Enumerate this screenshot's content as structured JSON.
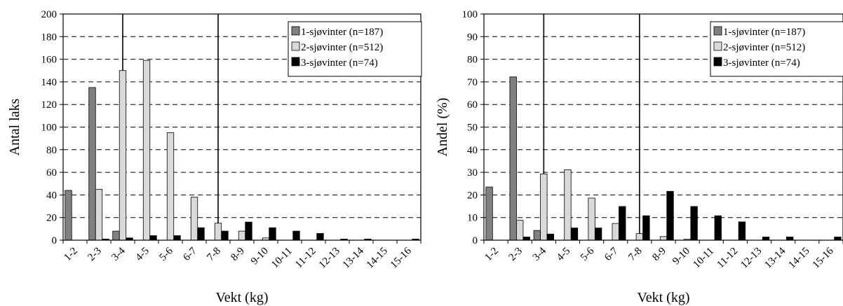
{
  "colors": {
    "series": [
      "#808080",
      "#d9d9d9",
      "#000000"
    ]
  },
  "chart_data": [
    {
      "type": "bar",
      "xlabel": "Vekt (kg)",
      "ylabel": "Antal laks",
      "ylim": [
        0,
        200
      ],
      "yticks": [
        0,
        20,
        40,
        60,
        80,
        100,
        120,
        140,
        160,
        180,
        200
      ],
      "grid": "horizontal dashed",
      "legend_position": "top-right",
      "categories": [
        "1-2",
        "2-3",
        "3-4",
        "4-5",
        "5-6",
        "6-7",
        "7-8",
        "8-9",
        "9-10",
        "10-11",
        "11-12",
        "12-13",
        "13-14",
        "14-15",
        "15-16"
      ],
      "vertical_lines_between": [
        2.5,
        6.5
      ],
      "series": [
        {
          "name": "1-sjøvinter (n=187)",
          "values": [
            44,
            135,
            8,
            0,
            0,
            0,
            0,
            0,
            0,
            0,
            0,
            0,
            0,
            0,
            0
          ]
        },
        {
          "name": "2-sjøvinter (n=512)",
          "values": [
            0,
            45,
            150,
            159,
            95,
            38,
            15,
            8,
            2,
            0,
            0,
            0,
            0,
            0,
            0
          ]
        },
        {
          "name": "3-sjøvinter (n=74)",
          "values": [
            0,
            1,
            2,
            4,
            4,
            11,
            8,
            16,
            11,
            8,
            6,
            1,
            1,
            0,
            1
          ]
        }
      ]
    },
    {
      "type": "bar",
      "xlabel": "Vekt (kg)",
      "ylabel": "Andel (%)",
      "ylim": [
        0,
        100
      ],
      "yticks": [
        0,
        10,
        20,
        30,
        40,
        50,
        60,
        70,
        80,
        90,
        100
      ],
      "grid": "horizontal dashed",
      "legend_position": "top-right",
      "categories": [
        "1-2",
        "2-3",
        "3-4",
        "4-5",
        "5-6",
        "6-7",
        "7-8",
        "8-9",
        "9-10",
        "10-11",
        "11-12",
        "12-13",
        "13-14",
        "14-15",
        "15-16"
      ],
      "vertical_lines_between": [
        2.5,
        6.5
      ],
      "series": [
        {
          "name": "1-sjøvinter (n=187)",
          "values": [
            23.5,
            72.2,
            4.3,
            0,
            0,
            0,
            0,
            0,
            0,
            0,
            0,
            0,
            0,
            0,
            0
          ]
        },
        {
          "name": "2-sjøvinter (n=512)",
          "values": [
            0,
            8.8,
            29.3,
            31.1,
            18.6,
            7.4,
            2.9,
            1.6,
            0.4,
            0,
            0,
            0,
            0,
            0,
            0
          ]
        },
        {
          "name": "3-sjøvinter (n=74)",
          "values": [
            0,
            1.4,
            2.7,
            5.4,
            5.4,
            14.9,
            10.8,
            21.6,
            14.9,
            10.8,
            8.1,
            1.4,
            1.4,
            0,
            1.4
          ]
        }
      ]
    }
  ]
}
